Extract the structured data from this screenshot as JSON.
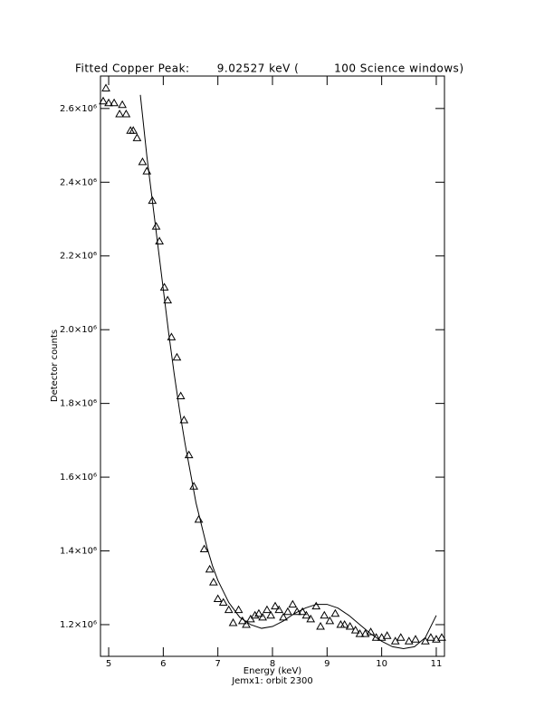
{
  "chart_data": {
    "type": "scatter",
    "title": "Fitted Copper Peak:       9.02527 keV (         100 Science windows)",
    "xlabel": "Energy (keV)",
    "subtitle": "Jemx1: orbit 2300",
    "ylabel": "Detector counts",
    "xlim": [
      4.85,
      11.15
    ],
    "ylim": [
      1114000,
      2688000
    ],
    "xticks": [
      5,
      6,
      7,
      8,
      9,
      10,
      11
    ],
    "yticks": [
      {
        "value": 1200000,
        "label": "1.2×10⁶"
      },
      {
        "value": 1400000,
        "label": "1.4×10⁶"
      },
      {
        "value": 1600000,
        "label": "1.6×10⁶"
      },
      {
        "value": 1800000,
        "label": "1.8×10⁶"
      },
      {
        "value": 2000000,
        "label": "2.0×10⁶"
      },
      {
        "value": 2200000,
        "label": "2.2×10⁶"
      },
      {
        "value": 2400000,
        "label": "2.4×10⁶"
      },
      {
        "value": 2600000,
        "label": "2.6×10⁶"
      }
    ],
    "series": [
      {
        "type": "scatter",
        "marker": "triangle",
        "color": "#000000",
        "x": [
          4.9,
          4.95,
          5.0,
          5.1,
          5.2,
          5.25,
          5.32,
          5.4,
          5.45,
          5.52,
          5.62,
          5.7,
          5.8,
          5.87,
          5.93,
          6.02,
          6.08,
          6.15,
          6.25,
          6.32,
          6.38,
          6.47,
          6.56,
          6.65,
          6.75,
          6.85,
          6.92,
          7.0,
          7.1,
          7.2,
          7.28,
          7.38,
          7.45,
          7.52,
          7.6,
          7.68,
          7.75,
          7.82,
          7.9,
          7.97,
          8.05,
          8.12,
          8.2,
          8.28,
          8.37,
          8.45,
          8.55,
          8.62,
          8.7,
          8.8,
          8.88,
          8.95,
          9.05,
          9.15,
          9.25,
          9.32,
          9.42,
          9.52,
          9.6,
          9.7,
          9.8,
          9.9,
          10.0,
          10.1,
          10.25,
          10.35,
          10.5,
          10.62,
          10.8,
          10.9,
          11.0,
          11.1
        ],
        "values": [
          2620000,
          2655000,
          2615000,
          2615000,
          2585000,
          2610000,
          2585000,
          2540000,
          2540000,
          2520000,
          2455000,
          2430000,
          2350000,
          2280000,
          2240000,
          2115000,
          2080000,
          1980000,
          1925000,
          1820000,
          1755000,
          1660000,
          1575000,
          1485000,
          1405000,
          1350000,
          1315000,
          1270000,
          1260000,
          1240000,
          1205000,
          1240000,
          1210000,
          1200000,
          1215000,
          1225000,
          1230000,
          1220000,
          1240000,
          1225000,
          1250000,
          1240000,
          1220000,
          1235000,
          1255000,
          1235000,
          1235000,
          1225000,
          1215000,
          1250000,
          1195000,
          1225000,
          1210000,
          1230000,
          1200000,
          1200000,
          1195000,
          1185000,
          1175000,
          1175000,
          1180000,
          1165000,
          1165000,
          1170000,
          1155000,
          1165000,
          1155000,
          1160000,
          1155000,
          1165000,
          1160000,
          1165000
        ]
      },
      {
        "type": "line",
        "color": "#000000",
        "x": [
          5.58,
          5.7,
          5.8,
          5.9,
          6.0,
          6.1,
          6.2,
          6.3,
          6.4,
          6.5,
          6.6,
          6.7,
          6.8,
          6.9,
          7.0,
          7.2,
          7.4,
          7.6,
          7.8,
          8.0,
          8.2,
          8.4,
          8.6,
          8.8,
          9.0,
          9.2,
          9.4,
          9.6,
          9.8,
          10.0,
          10.2,
          10.4,
          10.6,
          10.8,
          11.0
        ],
        "values": [
          2637000,
          2470000,
          2350000,
          2230000,
          2110000,
          1990000,
          1880000,
          1780000,
          1690000,
          1610000,
          1530000,
          1470000,
          1410000,
          1360000,
          1320000,
          1260000,
          1220000,
          1200000,
          1190000,
          1195000,
          1210000,
          1230000,
          1245000,
          1255000,
          1255000,
          1245000,
          1225000,
          1200000,
          1175000,
          1155000,
          1140000,
          1135000,
          1140000,
          1165000,
          1225000
        ]
      }
    ]
  }
}
